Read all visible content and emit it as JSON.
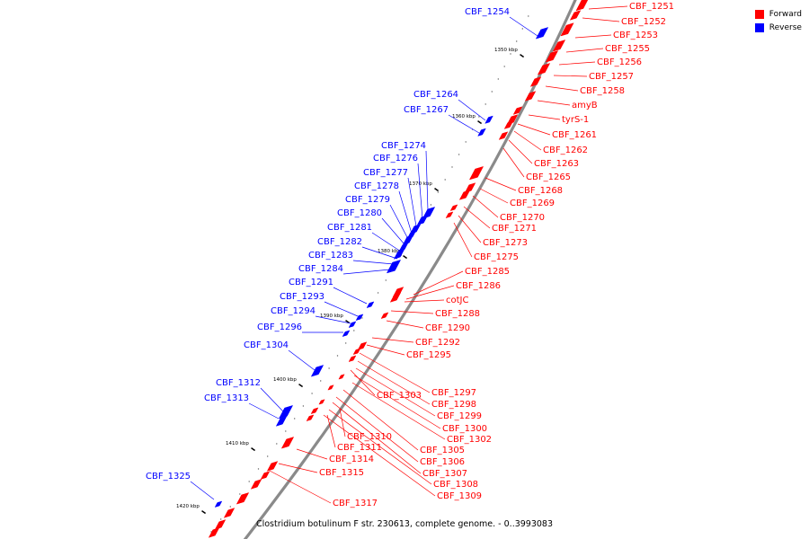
{
  "legend": [
    {
      "label": "Forward",
      "color": "#ff0000"
    },
    {
      "label": "Reverse",
      "color": "#0000ff"
    }
  ],
  "caption": "Clostridium botulinum F str. 230613, complete genome. - 0..3993083",
  "ticks": [
    "1350 kbp",
    "1360 kbp",
    "1370 kbp",
    "1380 kbp",
    "1390 kbp",
    "1400 kbp",
    "1410 kbp",
    "1420 kbp"
  ],
  "forward_labels": [
    "CBF_1251",
    "CBF_1252",
    "CBF_1253",
    "CBF_1255",
    "CBF_1256",
    "CBF_1257",
    "CBF_1258",
    "amyB",
    "tyrS-1",
    "CBF_1261",
    "CBF_1262",
    "CBF_1263",
    "CBF_1265",
    "CBF_1268",
    "CBF_1269",
    "CBF_1270",
    "CBF_1271",
    "CBF_1273",
    "CBF_1275",
    "CBF_1285",
    "CBF_1286",
    "cotJC",
    "CBF_1288",
    "CBF_1290",
    "CBF_1292",
    "CBF_1295",
    "CBF_1297",
    "CBF_1303",
    "CBF_1298",
    "CBF_1299",
    "CBF_1300",
    "CBF_1302",
    "CBF_1310",
    "CBF_1305",
    "CBF_1311",
    "CBF_1306",
    "CBF_1314",
    "CBF_1307",
    "CBF_1315",
    "CBF_1308",
    "CBF_1309",
    "CBF_1317"
  ],
  "reverse_labels": [
    "CBF_1254",
    "CBF_1264",
    "CBF_1267",
    "CBF_1274",
    "CBF_1276",
    "CBF_1277",
    "CBF_1278",
    "CBF_1279",
    "CBF_1280",
    "CBF_1281",
    "CBF_1282",
    "CBF_1283",
    "CBF_1284",
    "CBF_1291",
    "CBF_1293",
    "CBF_1294",
    "CBF_1296",
    "CBF_1304",
    "CBF_1312",
    "CBF_1313",
    "CBF_1325"
  ]
}
